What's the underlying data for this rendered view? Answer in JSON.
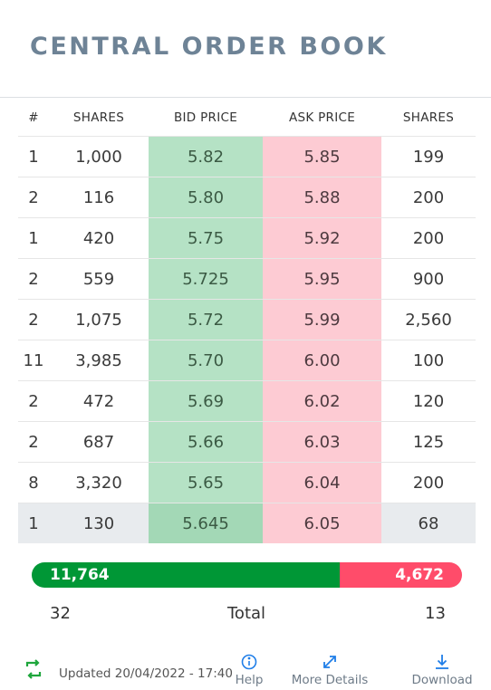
{
  "title": "CENTRAL ORDER BOOK",
  "columns": [
    "#",
    "SHARES",
    "BID PRICE",
    "ASK PRICE",
    "SHARES"
  ],
  "rows": [
    {
      "n": "1",
      "bid_shares": "1,000",
      "bid": "5.82",
      "ask": "5.85",
      "ask_shares": "199"
    },
    {
      "n": "2",
      "bid_shares": "116",
      "bid": "5.80",
      "ask": "5.88",
      "ask_shares": "200"
    },
    {
      "n": "1",
      "bid_shares": "420",
      "bid": "5.75",
      "ask": "5.92",
      "ask_shares": "200"
    },
    {
      "n": "2",
      "bid_shares": "559",
      "bid": "5.725",
      "ask": "5.95",
      "ask_shares": "900"
    },
    {
      "n": "2",
      "bid_shares": "1,075",
      "bid": "5.72",
      "ask": "5.99",
      "ask_shares": "2,560"
    },
    {
      "n": "11",
      "bid_shares": "3,985",
      "bid": "5.70",
      "ask": "6.00",
      "ask_shares": "100"
    },
    {
      "n": "2",
      "bid_shares": "472",
      "bid": "5.69",
      "ask": "6.02",
      "ask_shares": "120"
    },
    {
      "n": "2",
      "bid_shares": "687",
      "bid": "5.66",
      "ask": "6.03",
      "ask_shares": "125"
    },
    {
      "n": "8",
      "bid_shares": "3,320",
      "bid": "5.65",
      "ask": "6.04",
      "ask_shares": "200"
    },
    {
      "n": "1",
      "bid_shares": "130",
      "bid": "5.645",
      "ask": "6.05",
      "ask_shares": "68"
    }
  ],
  "summary": {
    "bid_total": "11,764",
    "ask_total": "4,672",
    "bid_share_fraction": 0.716,
    "bid_orders": "32",
    "total_label": "Total",
    "ask_orders": "13"
  },
  "footer": {
    "updated": "Updated 20/04/2022 - 17:40",
    "help": "Help",
    "more_details": "More Details",
    "download": "Download"
  },
  "colors": {
    "bid_bar": "#009736",
    "ask_bar": "#ff4c6a",
    "bid_cell": "#b5e2c5",
    "ask_cell": "#fdcbd3",
    "title": "#6e8396",
    "accent": "#1f7ee8"
  },
  "icons": {
    "refresh": "refresh-icon",
    "help": "info-icon",
    "more_details": "expand-icon",
    "download": "download-icon"
  }
}
